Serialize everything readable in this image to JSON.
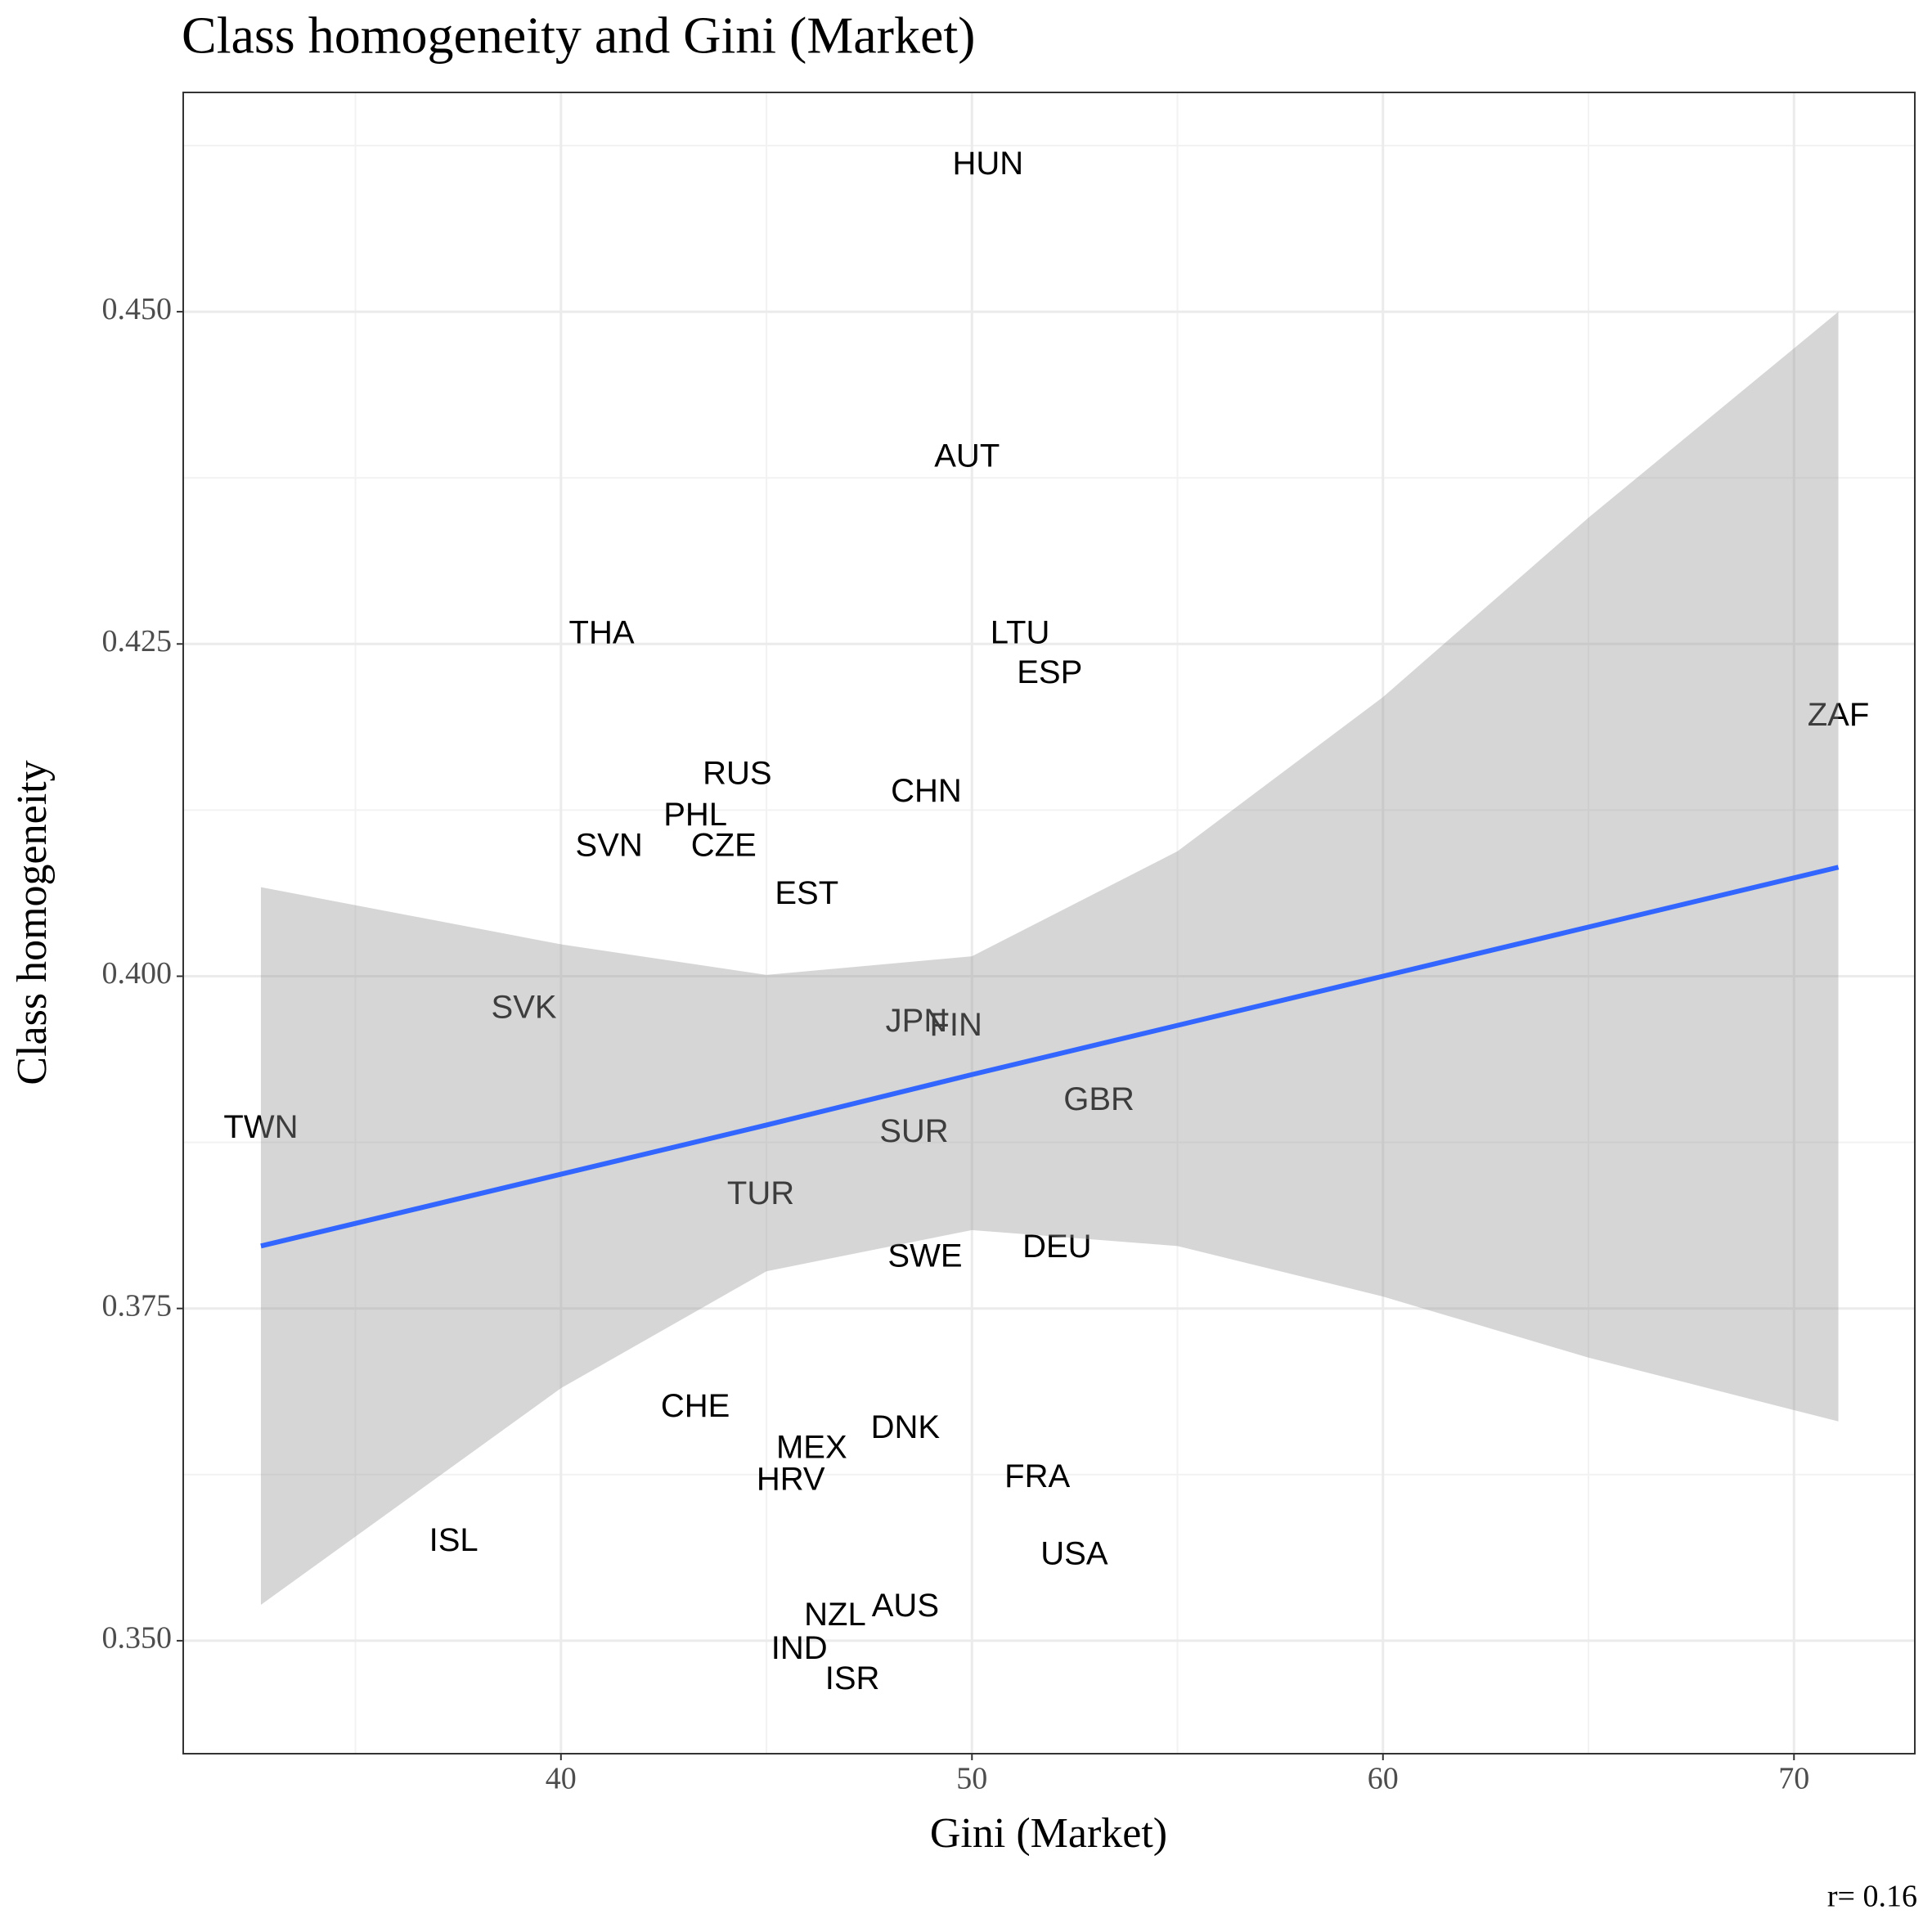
{
  "chart_data": {
    "type": "scatter",
    "title": "Class homogeneity and Gini (Market)",
    "x_label": "Gini (Market)",
    "y_label": "Class homogeneity",
    "annotation": "r= 0.16",
    "labels": [
      "HUN",
      "AUT",
      "THA",
      "LTU",
      "ESP",
      "ZAF",
      "RUS",
      "CHN",
      "PHL",
      "SVN",
      "CZE",
      "EST",
      "SVK",
      "JPN",
      "FIN",
      "TWN",
      "GBR",
      "SUR",
      "TUR",
      "SWE",
      "DEU",
      "CHE",
      "DNK",
      "MEX",
      "HRV",
      "FRA",
      "ISL",
      "USA",
      "AUS",
      "NZL",
      "IND",
      "ISR"
    ],
    "x": [
      50.39,
      49.88,
      40.99,
      51.17,
      51.89,
      71.08,
      44.29,
      48.89,
      43.27,
      41.17,
      43.96,
      45.98,
      39.1,
      48.65,
      49.61,
      32.7,
      53.09,
      48.59,
      44.86,
      48.86,
      52.07,
      43.27,
      48.38,
      46.1,
      45.59,
      51.59,
      37.39,
      52.49,
      48.38,
      46.67,
      45.8,
      47.09
    ],
    "values": [
      0.461,
      0.439,
      0.4257,
      0.4257,
      0.4227,
      0.4195,
      0.4151,
      0.4138,
      0.412,
      0.4097,
      0.4097,
      0.4061,
      0.3975,
      0.3965,
      0.3962,
      0.3885,
      0.3906,
      0.3882,
      0.3835,
      0.3788,
      0.3795,
      0.3675,
      0.3659,
      0.3644,
      0.362,
      0.3622,
      0.3574,
      0.3564,
      0.3525,
      0.3518,
      0.3493,
      0.347
    ],
    "color": "#000000",
    "smooth": {
      "color": "#3366ff",
      "band_color": "#999999",
      "x": [
        32.7,
        40,
        45,
        50,
        55,
        60,
        65,
        71.08
      ],
      "fit": [
        0.3797,
        0.3851,
        0.3888,
        0.3926,
        0.3963,
        0.4,
        0.4037,
        0.4082
      ],
      "lower": [
        0.3527,
        0.369,
        0.3778,
        0.3809,
        0.3797,
        0.3759,
        0.3713,
        0.3665
      ],
      "upper": [
        0.4067,
        0.4024,
        0.4001,
        0.4015,
        0.4094,
        0.421,
        0.4345,
        0.45
      ]
    },
    "xlim": [
      30.81,
      72.94
    ],
    "ylim": [
      0.3415,
      0.4665
    ],
    "xticks": [
      40,
      50,
      60,
      70
    ],
    "yticks": [
      {
        "value": 0.35,
        "label": "0.350"
      },
      {
        "value": 0.375,
        "label": "0.375"
      },
      {
        "value": 0.4,
        "label": "0.400"
      },
      {
        "value": 0.425,
        "label": "0.425"
      },
      {
        "value": 0.45,
        "label": "0.450"
      }
    ],
    "grid": true
  }
}
